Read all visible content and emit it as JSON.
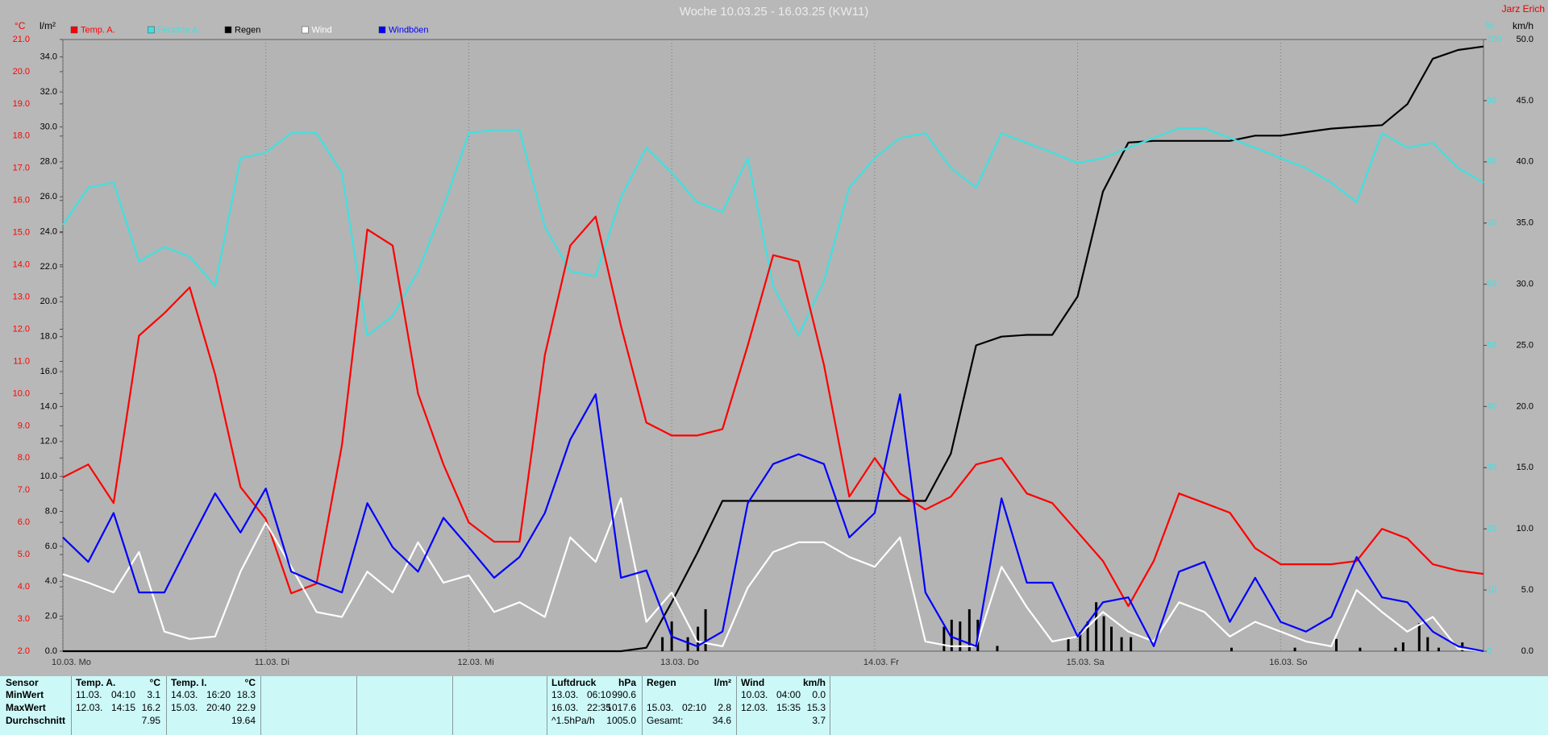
{
  "chart_data": {
    "type": "line",
    "title": "Woche 10.03.25 - 16.03.25 (KW11)",
    "corner_label": "Jarz Erich",
    "y_unit": "°C",
    "y2_unit": "l/m²",
    "y3_unit": "%",
    "y4_unit": "km/h",
    "x": [
      0,
      3,
      6,
      9,
      12,
      15,
      18,
      21,
      24,
      27,
      30,
      33,
      36,
      39,
      42,
      45,
      48,
      51,
      54,
      57,
      60,
      63,
      66,
      69,
      72,
      75,
      78,
      81,
      84,
      87,
      90,
      93,
      96,
      99,
      102,
      105,
      108,
      111,
      114,
      117,
      120,
      123,
      126,
      129,
      132,
      135,
      138,
      141,
      144,
      147,
      150,
      153,
      156,
      159,
      162,
      165,
      168
    ],
    "xlim": [
      0,
      168
    ],
    "xticks": [
      {
        "value": 0,
        "label": "10.03. Mo"
      },
      {
        "value": 24,
        "label": "11.03. Di"
      },
      {
        "value": 48,
        "label": "12.03. Mi"
      },
      {
        "value": 72,
        "label": "13.03. Do"
      },
      {
        "value": 96,
        "label": "14.03. Fr"
      },
      {
        "value": 120,
        "label": "15.03. Sa"
      },
      {
        "value": 144,
        "label": "16.03. So"
      }
    ],
    "ylim": [
      2,
      21
    ],
    "yticks": [
      {
        "value": 2,
        "label": "2.0"
      },
      {
        "value": 3,
        "label": "3.0"
      },
      {
        "value": 4,
        "label": "4.0"
      },
      {
        "value": 5,
        "label": "5.0"
      },
      {
        "value": 6,
        "label": "6.0"
      },
      {
        "value": 7,
        "label": "7.0"
      },
      {
        "value": 8,
        "label": "8.0"
      },
      {
        "value": 9,
        "label": "9.0"
      },
      {
        "value": 10,
        "label": "10.0"
      },
      {
        "value": 11,
        "label": "11.0"
      },
      {
        "value": 12,
        "label": "12.0"
      },
      {
        "value": 13,
        "label": "13.0"
      },
      {
        "value": 14,
        "label": "14.0"
      },
      {
        "value": 15,
        "label": "15.0"
      },
      {
        "value": 16,
        "label": "16.0"
      },
      {
        "value": 17,
        "label": "17.0"
      },
      {
        "value": 18,
        "label": "18.0"
      },
      {
        "value": 19,
        "label": "19.0"
      },
      {
        "value": 20,
        "label": "20.0"
      },
      {
        "value": 21,
        "label": "21.0"
      }
    ],
    "y2lim": [
      0,
      35
    ],
    "y2ticks": [
      {
        "value": 0,
        "label": "0.0"
      },
      {
        "value": 2,
        "label": "2.0"
      },
      {
        "value": 4,
        "label": "4.0"
      },
      {
        "value": 6,
        "label": "6.0"
      },
      {
        "value": 8,
        "label": "8.0"
      },
      {
        "value": 10,
        "label": "10.0"
      },
      {
        "value": 12,
        "label": "12.0"
      },
      {
        "value": 14,
        "label": "14.0"
      },
      {
        "value": 16,
        "label": "16.0"
      },
      {
        "value": 18,
        "label": "18.0"
      },
      {
        "value": 20,
        "label": "20.0"
      },
      {
        "value": 22,
        "label": "22.0"
      },
      {
        "value": 24,
        "label": "24.0"
      },
      {
        "value": 26,
        "label": "26.0"
      },
      {
        "value": 28,
        "label": "28.0"
      },
      {
        "value": 30,
        "label": "30.0"
      },
      {
        "value": 32,
        "label": "32.0"
      },
      {
        "value": 34,
        "label": "34.0"
      }
    ],
    "y3lim": [
      0,
      100
    ],
    "y3ticks": [
      0,
      10,
      20,
      30,
      40,
      50,
      60,
      70,
      80,
      90,
      100
    ],
    "y4lim": [
      0,
      50
    ],
    "y4ticks": [
      {
        "value": 0,
        "label": "0.0"
      },
      {
        "value": 5,
        "label": "5.0"
      },
      {
        "value": 10,
        "label": "10.0"
      },
      {
        "value": 15,
        "label": "15.0"
      },
      {
        "value": 20,
        "label": "20.0"
      },
      {
        "value": 25,
        "label": "25.0"
      },
      {
        "value": 30,
        "label": "30.0"
      },
      {
        "value": 35,
        "label": "35.0"
      },
      {
        "value": 40,
        "label": "40.0"
      },
      {
        "value": 45,
        "label": "45.0"
      },
      {
        "value": 50,
        "label": "50.0"
      }
    ],
    "series": [
      {
        "name": "Temp. A.",
        "color": "#ff0000",
        "axis": "y",
        "values": [
          7.4,
          7.8,
          6.6,
          11.8,
          12.5,
          13.3,
          10.6,
          7.1,
          6.1,
          3.8,
          4.1,
          8.4,
          15.1,
          14.6,
          10.0,
          7.8,
          6.0,
          5.4,
          5.4,
          11.2,
          14.6,
          15.5,
          12.1,
          9.1,
          8.7,
          8.7,
          8.9,
          11.5,
          14.3,
          14.1,
          10.9,
          6.8,
          8.0,
          6.9,
          6.4,
          6.8,
          7.8,
          8.0,
          6.9,
          6.6,
          5.7,
          4.8,
          3.4,
          4.8,
          6.9,
          6.6,
          6.3,
          5.2,
          4.7,
          4.7,
          4.7,
          4.8,
          5.8,
          5.5,
          4.7,
          4.5,
          4.4
        ]
      },
      {
        "name": "Feuchte A.",
        "color": "#40e0e0",
        "axis": "y3",
        "values": [
          69.7,
          75.8,
          76.6,
          63.7,
          66.1,
          64.5,
          59.7,
          80.6,
          81.5,
          84.7,
          84.7,
          78.2,
          51.6,
          54.8,
          62.1,
          72.6,
          84.7,
          85.2,
          85.2,
          69.4,
          62.1,
          61.3,
          74.2,
          82.3,
          78.2,
          73.4,
          71.8,
          80.6,
          59.7,
          51.6,
          60.5,
          75.8,
          80.6,
          83.9,
          84.7,
          79.0,
          75.8,
          84.7,
          83.1,
          81.5,
          79.8,
          80.6,
          82.3,
          83.9,
          85.5,
          85.5,
          83.9,
          82.3,
          80.6,
          79.0,
          76.6,
          73.4,
          84.7,
          82.3,
          83.1,
          79.0,
          76.6
        ]
      },
      {
        "name": "Regen",
        "color": "#000000",
        "axis": "y2",
        "values": [
          0,
          0,
          0,
          0,
          0,
          0,
          0,
          0,
          0,
          0,
          0,
          0,
          0,
          0,
          0,
          0,
          0,
          0,
          0,
          0,
          0,
          0,
          0,
          0.2,
          2.8,
          5.6,
          8.6,
          8.6,
          8.6,
          8.6,
          8.6,
          8.6,
          8.6,
          8.6,
          8.6,
          11.3,
          17.5,
          18.0,
          18.1,
          18.1,
          20.3,
          26.3,
          29.1,
          29.2,
          29.2,
          29.2,
          29.2,
          29.5,
          29.5,
          29.7,
          29.9,
          30.0,
          30.1,
          31.3,
          33.9,
          34.4,
          34.6
        ]
      },
      {
        "name": "Wind",
        "color": "#ffffff",
        "axis": "y4",
        "values": [
          6.3,
          5.6,
          4.8,
          8.1,
          1.6,
          1.0,
          1.2,
          6.5,
          10.5,
          6.9,
          3.2,
          2.8,
          6.5,
          4.8,
          8.9,
          5.6,
          6.2,
          3.2,
          4.0,
          2.8,
          9.3,
          7.3,
          12.5,
          2.4,
          4.8,
          0.8,
          0.4,
          5.2,
          8.1,
          8.9,
          8.9,
          7.7,
          6.9,
          9.3,
          0.8,
          0.4,
          0.4,
          6.9,
          3.6,
          0.8,
          1.2,
          3.2,
          1.6,
          0.8,
          4.0,
          3.2,
          1.2,
          2.4,
          1.6,
          0.8,
          0.4,
          5.0,
          3.2,
          1.6,
          2.8,
          0.2,
          0
        ]
      },
      {
        "name": "Windböen",
        "color": "#0000ff",
        "axis": "y4",
        "values": [
          9.3,
          7.3,
          11.3,
          4.8,
          4.8,
          8.9,
          12.9,
          9.7,
          13.3,
          6.5,
          5.6,
          4.8,
          12.1,
          8.5,
          6.5,
          10.9,
          8.5,
          6.0,
          7.7,
          11.3,
          17.3,
          21.0,
          6.0,
          6.6,
          1.2,
          0.4,
          1.6,
          12.1,
          15.3,
          16.1,
          15.3,
          9.3,
          11.3,
          21.0,
          4.8,
          1.2,
          0.4,
          12.5,
          5.6,
          5.6,
          1.2,
          4.0,
          4.4,
          0.4,
          6.5,
          7.3,
          2.4,
          6.0,
          2.4,
          1.6,
          2.8,
          7.7,
          4.4,
          4.0,
          1.6,
          0.4,
          0
        ]
      }
    ],
    "bars": {
      "color": "#000000",
      "axis": "y2",
      "x": [
        70.9,
        72.0,
        73.9,
        75.1,
        76.0,
        104.2,
        105.1,
        106.1,
        107.2,
        108.2,
        110.5,
        118.9,
        120.3,
        121.2,
        122.2,
        123.1,
        124.0,
        125.2,
        126.3,
        138.2,
        145.7,
        150.6,
        153.4,
        157.6,
        158.5,
        160.4,
        161.4,
        162.7,
        165.5
      ],
      "values": [
        0.8,
        1.7,
        0.8,
        1.4,
        2.4,
        1.4,
        1.8,
        1.7,
        2.4,
        1.8,
        0.3,
        0.7,
        1.1,
        1.7,
        2.8,
        2.0,
        1.4,
        0.8,
        0.8,
        0.2,
        0.2,
        0.7,
        0.2,
        0.2,
        0.5,
        1.6,
        0.8,
        0.2,
        0.5
      ]
    }
  },
  "summary": {
    "row_labels": [
      "Sensor",
      "MinWert",
      "MaxWert",
      "Durchschnitt"
    ],
    "groups": [
      {
        "title": "Temp. A.",
        "unit": "°C",
        "rows": [
          {
            "date": "11.03.",
            "time": "04:10",
            "value": "3.1"
          },
          {
            "date": "12.03.",
            "time": "14:15",
            "value": "16.2"
          },
          {
            "value": "7.95"
          }
        ]
      },
      {
        "title": "Temp. I.",
        "unit": "°C",
        "rows": [
          {
            "date": "14.03.",
            "time": "16:20",
            "value": "18.3"
          },
          {
            "date": "15.03.",
            "time": "20:40",
            "value": "22.9"
          },
          {
            "value": "19.64"
          }
        ]
      },
      {
        "title": "Luftdruck",
        "unit": "hPa",
        "rows": [
          {
            "date": "13.03.",
            "time": "06:10",
            "value": "990.6"
          },
          {
            "date": "16.03.",
            "time": "22:35",
            "value": "1017.6"
          },
          {
            "date": "^1.5hPa/h",
            "value": "1005.0"
          }
        ]
      },
      {
        "title": "Regen",
        "unit": "l/m²",
        "rows": [
          null,
          {
            "date": "15.03.",
            "time": "02:10",
            "value": "2.8"
          },
          {
            "date": "Gesamt:",
            "value": "34.6"
          }
        ]
      },
      {
        "title": "Wind",
        "unit": "km/h",
        "rows": [
          {
            "date": "10.03.",
            "time": "04:00",
            "value": "0.0"
          },
          {
            "date": "12.03.",
            "time": "15:35",
            "value": "15.3"
          },
          {
            "value": "3.7"
          }
        ]
      }
    ]
  }
}
